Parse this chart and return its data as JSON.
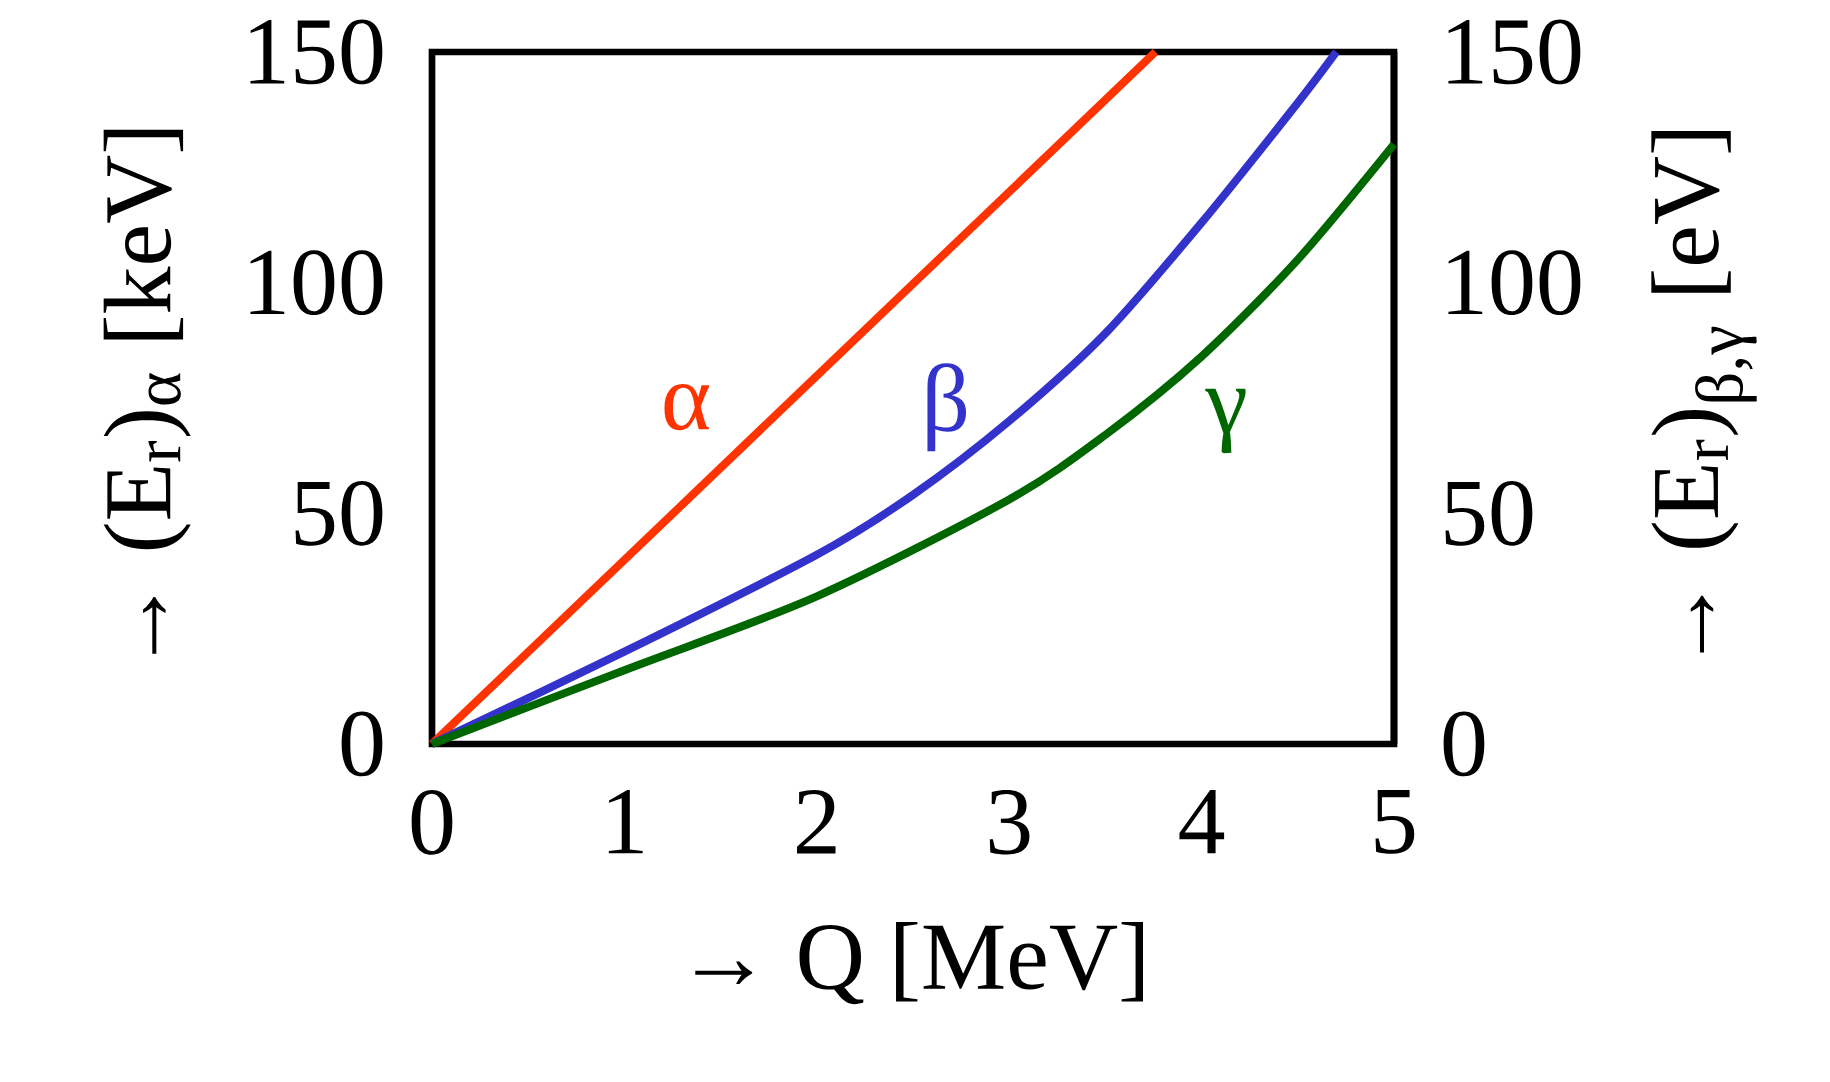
{
  "chart_data": {
    "type": "line",
    "xlabel": "→ Q [MeV]",
    "ylabel": "→ (E$_{r}$)$_{α}$ [keV]",
    "y2label": "→ (E$_{r}$)$_{β,γ}$ [eV]",
    "xlim": [
      0,
      5
    ],
    "ylim": [
      0,
      150
    ],
    "y2lim": [
      0,
      150
    ],
    "xticks": [
      0,
      1,
      2,
      3,
      4,
      5
    ],
    "yticks": [
      0,
      50,
      100,
      150
    ],
    "y2ticks": [
      0,
      50,
      100,
      150
    ],
    "series": [
      {
        "name": "α",
        "color": "#ff3300",
        "axis": "y",
        "x": [
          0,
          3.76
        ],
        "values": [
          0,
          150
        ]
      },
      {
        "name": "β",
        "color": "#3333cc",
        "axis": "y2",
        "x": [
          0,
          1,
          2,
          2.5,
          3,
          3.5,
          4,
          4.5,
          4.7
        ],
        "values": [
          0,
          20,
          41,
          54,
          70,
          89,
          113,
          139,
          150
        ]
      },
      {
        "name": "γ",
        "color": "#006600",
        "axis": "y2",
        "x": [
          0,
          1,
          2,
          3,
          3.5,
          4,
          4.5,
          5
        ],
        "values": [
          0,
          16,
          32,
          53,
          67,
          84,
          105,
          130
        ]
      }
    ]
  }
}
